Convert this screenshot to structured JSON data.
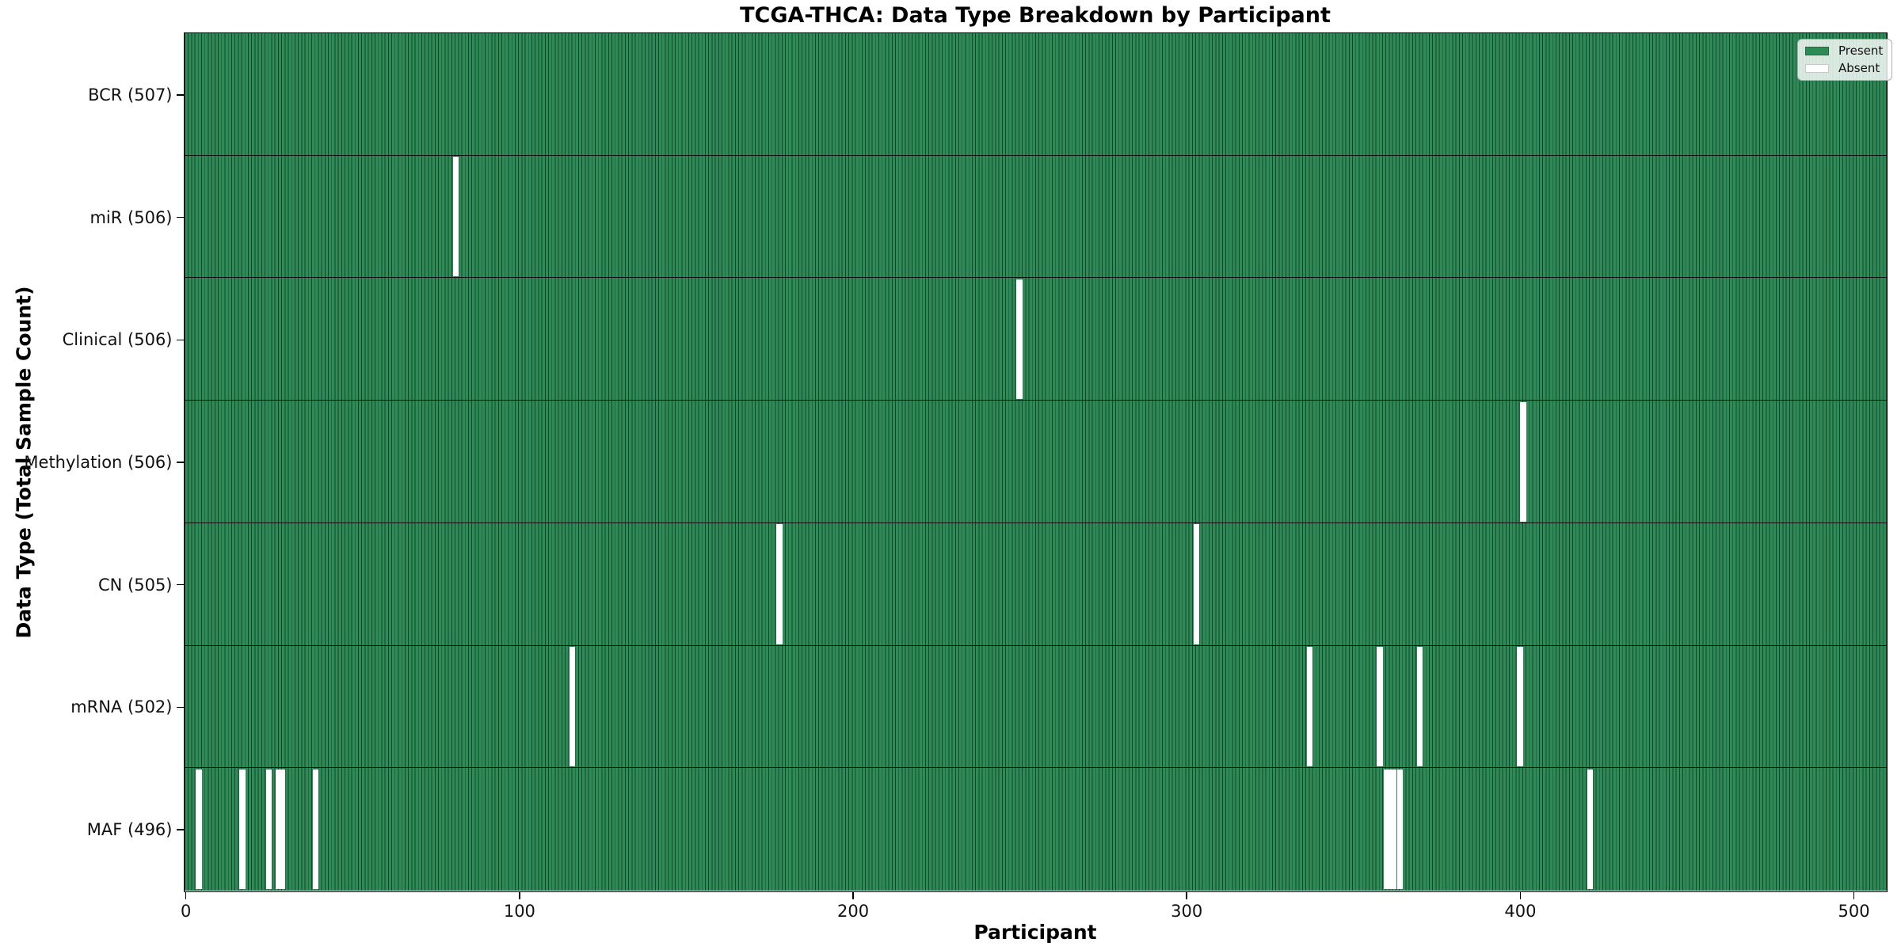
{
  "chart_data": {
    "type": "heatmap",
    "title": "TCGA-THCA: Data Type Breakdown by Participant",
    "xlabel": "Participant",
    "ylabel": "Data Type (Total Sample Count)",
    "legend": {
      "present_label": "Present",
      "absent_label": "Absent"
    },
    "legend_position": "upper right",
    "colors": {
      "present": "#2e8b57",
      "absent": "#ffffff",
      "bar_edge": "rgba(0,0,0,0.5)",
      "row_separator": "#101010"
    },
    "total_participants": 507,
    "x_ticks": [
      0,
      100,
      200,
      300,
      400,
      500
    ],
    "x_range": [
      0,
      507
    ],
    "rows": [
      {
        "data_type": "BCR",
        "label": "BCR (507)",
        "count": 507,
        "absent_participants": []
      },
      {
        "data_type": "miR",
        "label": "miR (506)",
        "count": 506,
        "absent_participants": [
          81
        ]
      },
      {
        "data_type": "Clinical",
        "label": "Clinical (506)",
        "count": 506,
        "absent_participants": [
          250
        ]
      },
      {
        "data_type": "Methylation",
        "label": "Methylation (506)",
        "count": 506,
        "absent_participants": [
          401
        ]
      },
      {
        "data_type": "CN",
        "label": "CN (505)",
        "count": 505,
        "absent_participants": [
          178,
          303
        ]
      },
      {
        "data_type": "mRNA",
        "label": "mRNA (502)",
        "count": 502,
        "absent_participants": [
          116,
          337,
          358,
          370,
          400
        ]
      },
      {
        "data_type": "MAF",
        "label": "MAF (496)",
        "count": 496,
        "absent_participants": [
          4,
          17,
          25,
          28,
          29,
          39,
          360,
          361,
          362,
          364,
          421
        ]
      }
    ]
  }
}
